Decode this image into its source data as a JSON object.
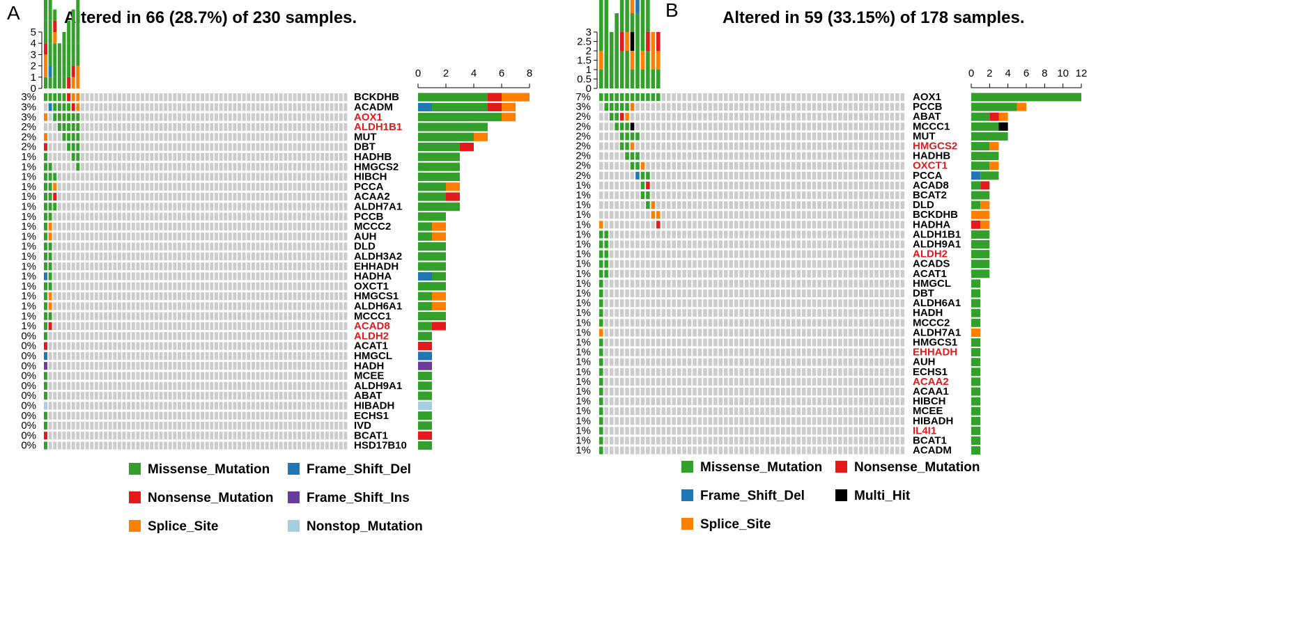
{
  "colors": {
    "Missense_Mutation": "#33A02C",
    "Frame_Shift_Del": "#1F78B4",
    "Nonsense_Mutation": "#E31A1C",
    "Frame_Shift_Ins": "#6A3D9A",
    "Splice_Site": "#FF7F00",
    "Nonstop_Mutation": "#A6CEE3",
    "Multi_Hit": "#000000",
    "empty": "#CCCCCC"
  },
  "chart_data": [
    {
      "type": "heatmap",
      "panel_label": "A",
      "title": "Altered in 66 (28.7%) of 230 samples.",
      "tmb_ticks": [
        "0",
        "1",
        "2",
        "3",
        "4",
        "5"
      ],
      "tmb_max": 5,
      "bar_ticks": [
        "0",
        "2",
        "4",
        "6",
        "8"
      ],
      "bar_max": 8,
      "legend": [
        "Missense_Mutation",
        "Frame_Shift_Del",
        "Nonsense_Mutation",
        "Frame_Shift_Ins",
        "Splice_Site",
        "Nonstop_Mutation"
      ],
      "genes": [
        {
          "name": "BCKDHB",
          "pct": "3%",
          "highlight": false,
          "counts": {
            "Missense_Mutation": 5,
            "Nonsense_Mutation": 1,
            "Splice_Site": 2
          }
        },
        {
          "name": "ACADM",
          "pct": "3%",
          "highlight": false,
          "counts": {
            "Frame_Shift_Del": 1,
            "Missense_Mutation": 4,
            "Nonsense_Mutation": 1,
            "Splice_Site": 1
          }
        },
        {
          "name": "AOX1",
          "pct": "3%",
          "highlight": true,
          "counts": {
            "Missense_Mutation": 6,
            "Splice_Site": 1
          }
        },
        {
          "name": "ALDH1B1",
          "pct": "2%",
          "highlight": true,
          "counts": {
            "Missense_Mutation": 5
          }
        },
        {
          "name": "MUT",
          "pct": "2%",
          "highlight": false,
          "counts": {
            "Missense_Mutation": 4,
            "Splice_Site": 1
          }
        },
        {
          "name": "DBT",
          "pct": "2%",
          "highlight": false,
          "counts": {
            "Missense_Mutation": 3,
            "Nonsense_Mutation": 1
          }
        },
        {
          "name": "HADHB",
          "pct": "1%",
          "highlight": false,
          "counts": {
            "Missense_Mutation": 3
          }
        },
        {
          "name": "HMGCS2",
          "pct": "1%",
          "highlight": false,
          "counts": {
            "Missense_Mutation": 3
          }
        },
        {
          "name": "HIBCH",
          "pct": "1%",
          "highlight": false,
          "counts": {
            "Missense_Mutation": 3
          }
        },
        {
          "name": "PCCA",
          "pct": "1%",
          "highlight": false,
          "counts": {
            "Missense_Mutation": 2,
            "Splice_Site": 1
          }
        },
        {
          "name": "ACAA2",
          "pct": "1%",
          "highlight": false,
          "counts": {
            "Missense_Mutation": 2,
            "Nonsense_Mutation": 1
          }
        },
        {
          "name": "ALDH7A1",
          "pct": "1%",
          "highlight": false,
          "counts": {
            "Missense_Mutation": 3
          }
        },
        {
          "name": "PCCB",
          "pct": "1%",
          "highlight": false,
          "counts": {
            "Missense_Mutation": 2
          }
        },
        {
          "name": "MCCC2",
          "pct": "1%",
          "highlight": false,
          "counts": {
            "Missense_Mutation": 1,
            "Splice_Site": 1
          }
        },
        {
          "name": "AUH",
          "pct": "1%",
          "highlight": false,
          "counts": {
            "Missense_Mutation": 1,
            "Splice_Site": 1
          }
        },
        {
          "name": "DLD",
          "pct": "1%",
          "highlight": false,
          "counts": {
            "Missense_Mutation": 2
          }
        },
        {
          "name": "ALDH3A2",
          "pct": "1%",
          "highlight": false,
          "counts": {
            "Missense_Mutation": 2
          }
        },
        {
          "name": "EHHADH",
          "pct": "1%",
          "highlight": false,
          "counts": {
            "Missense_Mutation": 2
          }
        },
        {
          "name": "HADHA",
          "pct": "1%",
          "highlight": false,
          "counts": {
            "Frame_Shift_Del": 1,
            "Missense_Mutation": 1
          }
        },
        {
          "name": "OXCT1",
          "pct": "1%",
          "highlight": false,
          "counts": {
            "Missense_Mutation": 2
          }
        },
        {
          "name": "HMGCS1",
          "pct": "1%",
          "highlight": false,
          "counts": {
            "Missense_Mutation": 1,
            "Splice_Site": 1
          }
        },
        {
          "name": "ALDH6A1",
          "pct": "1%",
          "highlight": false,
          "counts": {
            "Missense_Mutation": 1,
            "Splice_Site": 1
          }
        },
        {
          "name": "MCCC1",
          "pct": "1%",
          "highlight": false,
          "counts": {
            "Missense_Mutation": 2
          }
        },
        {
          "name": "ACAD8",
          "pct": "1%",
          "highlight": true,
          "counts": {
            "Missense_Mutation": 1,
            "Nonsense_Mutation": 1
          }
        },
        {
          "name": "ALDH2",
          "pct": "0%",
          "highlight": true,
          "counts": {
            "Missense_Mutation": 1
          }
        },
        {
          "name": "ACAT1",
          "pct": "0%",
          "highlight": false,
          "counts": {
            "Nonsense_Mutation": 1
          }
        },
        {
          "name": "HMGCL",
          "pct": "0%",
          "highlight": false,
          "counts": {
            "Frame_Shift_Del": 1
          }
        },
        {
          "name": "HADH",
          "pct": "0%",
          "highlight": false,
          "counts": {
            "Frame_Shift_Ins": 1
          }
        },
        {
          "name": "MCEE",
          "pct": "0%",
          "highlight": false,
          "counts": {
            "Missense_Mutation": 1
          }
        },
        {
          "name": "ALDH9A1",
          "pct": "0%",
          "highlight": false,
          "counts": {
            "Missense_Mutation": 1
          }
        },
        {
          "name": "ABAT",
          "pct": "0%",
          "highlight": false,
          "counts": {
            "Missense_Mutation": 1
          }
        },
        {
          "name": "HIBADH",
          "pct": "0%",
          "highlight": false,
          "counts": {
            "Nonstop_Mutation": 1
          }
        },
        {
          "name": "ECHS1",
          "pct": "0%",
          "highlight": false,
          "counts": {
            "Missense_Mutation": 1
          }
        },
        {
          "name": "IVD",
          "pct": "0%",
          "highlight": false,
          "counts": {
            "Missense_Mutation": 1
          }
        },
        {
          "name": "BCAT1",
          "pct": "0%",
          "highlight": false,
          "counts": {
            "Nonsense_Mutation": 1
          }
        },
        {
          "name": "HSD17B10",
          "pct": "0%",
          "highlight": false,
          "counts": {
            "Missense_Mutation": 1
          }
        }
      ]
    },
    {
      "type": "heatmap",
      "panel_label": "B",
      "title": "Altered in 59 (33.15%) of 178 samples.",
      "tmb_ticks": [
        "0",
        "0.5",
        "1",
        "1.5",
        "2",
        "2.5",
        "3"
      ],
      "tmb_max": 3,
      "bar_ticks": [
        "0",
        "2",
        "4",
        "6",
        "8",
        "10",
        "12"
      ],
      "bar_max": 12,
      "legend": [
        "Missense_Mutation",
        "Nonsense_Mutation",
        "Frame_Shift_Del",
        "Multi_Hit",
        "Splice_Site"
      ],
      "genes": [
        {
          "name": "AOX1",
          "pct": "7%",
          "highlight": false,
          "counts": {
            "Missense_Mutation": 12
          }
        },
        {
          "name": "PCCB",
          "pct": "3%",
          "highlight": false,
          "counts": {
            "Missense_Mutation": 5,
            "Splice_Site": 1
          }
        },
        {
          "name": "ABAT",
          "pct": "2%",
          "highlight": false,
          "counts": {
            "Missense_Mutation": 2,
            "Nonsense_Mutation": 1,
            "Splice_Site": 1
          }
        },
        {
          "name": "MCCC1",
          "pct": "2%",
          "highlight": false,
          "counts": {
            "Missense_Mutation": 3,
            "Multi_Hit": 1
          }
        },
        {
          "name": "MUT",
          "pct": "2%",
          "highlight": false,
          "counts": {
            "Missense_Mutation": 4
          }
        },
        {
          "name": "HMGCS2",
          "pct": "2%",
          "highlight": true,
          "counts": {
            "Missense_Mutation": 2,
            "Splice_Site": 1
          }
        },
        {
          "name": "HADHB",
          "pct": "2%",
          "highlight": false,
          "counts": {
            "Missense_Mutation": 3
          }
        },
        {
          "name": "OXCT1",
          "pct": "2%",
          "highlight": true,
          "counts": {
            "Missense_Mutation": 2,
            "Splice_Site": 1
          }
        },
        {
          "name": "PCCA",
          "pct": "2%",
          "highlight": false,
          "counts": {
            "Frame_Shift_Del": 1,
            "Missense_Mutation": 2
          }
        },
        {
          "name": "ACAD8",
          "pct": "1%",
          "highlight": false,
          "counts": {
            "Missense_Mutation": 1,
            "Nonsense_Mutation": 1
          }
        },
        {
          "name": "BCAT2",
          "pct": "1%",
          "highlight": false,
          "counts": {
            "Missense_Mutation": 2
          }
        },
        {
          "name": "DLD",
          "pct": "1%",
          "highlight": false,
          "counts": {
            "Missense_Mutation": 1,
            "Splice_Site": 1
          }
        },
        {
          "name": "BCKDHB",
          "pct": "1%",
          "highlight": false,
          "counts": {
            "Splice_Site": 2
          }
        },
        {
          "name": "HADHA",
          "pct": "1%",
          "highlight": false,
          "counts": {
            "Nonsense_Mutation": 1,
            "Splice_Site": 1
          }
        },
        {
          "name": "ALDH1B1",
          "pct": "1%",
          "highlight": false,
          "counts": {
            "Missense_Mutation": 2
          }
        },
        {
          "name": "ALDH9A1",
          "pct": "1%",
          "highlight": false,
          "counts": {
            "Missense_Mutation": 2
          }
        },
        {
          "name": "ALDH2",
          "pct": "1%",
          "highlight": true,
          "counts": {
            "Missense_Mutation": 2
          }
        },
        {
          "name": "ACADS",
          "pct": "1%",
          "highlight": false,
          "counts": {
            "Missense_Mutation": 2
          }
        },
        {
          "name": "ACAT1",
          "pct": "1%",
          "highlight": false,
          "counts": {
            "Missense_Mutation": 2
          }
        },
        {
          "name": "HMGCL",
          "pct": "1%",
          "highlight": false,
          "counts": {
            "Missense_Mutation": 1
          }
        },
        {
          "name": "DBT",
          "pct": "1%",
          "highlight": false,
          "counts": {
            "Missense_Mutation": 1
          }
        },
        {
          "name": "ALDH6A1",
          "pct": "1%",
          "highlight": false,
          "counts": {
            "Missense_Mutation": 1
          }
        },
        {
          "name": "HADH",
          "pct": "1%",
          "highlight": false,
          "counts": {
            "Missense_Mutation": 1
          }
        },
        {
          "name": "MCCC2",
          "pct": "1%",
          "highlight": false,
          "counts": {
            "Missense_Mutation": 1
          }
        },
        {
          "name": "ALDH7A1",
          "pct": "1%",
          "highlight": false,
          "counts": {
            "Splice_Site": 1
          }
        },
        {
          "name": "HMGCS1",
          "pct": "1%",
          "highlight": false,
          "counts": {
            "Missense_Mutation": 1
          }
        },
        {
          "name": "EHHADH",
          "pct": "1%",
          "highlight": true,
          "counts": {
            "Missense_Mutation": 1
          }
        },
        {
          "name": "AUH",
          "pct": "1%",
          "highlight": false,
          "counts": {
            "Missense_Mutation": 1
          }
        },
        {
          "name": "ECHS1",
          "pct": "1%",
          "highlight": false,
          "counts": {
            "Missense_Mutation": 1
          }
        },
        {
          "name": "ACAA2",
          "pct": "1%",
          "highlight": true,
          "counts": {
            "Missense_Mutation": 1
          }
        },
        {
          "name": "ACAA1",
          "pct": "1%",
          "highlight": false,
          "counts": {
            "Missense_Mutation": 1
          }
        },
        {
          "name": "HIBCH",
          "pct": "1%",
          "highlight": false,
          "counts": {
            "Missense_Mutation": 1
          }
        },
        {
          "name": "MCEE",
          "pct": "1%",
          "highlight": false,
          "counts": {
            "Missense_Mutation": 1
          }
        },
        {
          "name": "HIBADH",
          "pct": "1%",
          "highlight": false,
          "counts": {
            "Missense_Mutation": 1
          }
        },
        {
          "name": "IL4I1",
          "pct": "1%",
          "highlight": true,
          "counts": {
            "Missense_Mutation": 1
          }
        },
        {
          "name": "BCAT1",
          "pct": "1%",
          "highlight": false,
          "counts": {
            "Missense_Mutation": 1
          }
        },
        {
          "name": "ACADM",
          "pct": "1%",
          "highlight": false,
          "counts": {
            "Missense_Mutation": 1
          }
        }
      ]
    }
  ]
}
